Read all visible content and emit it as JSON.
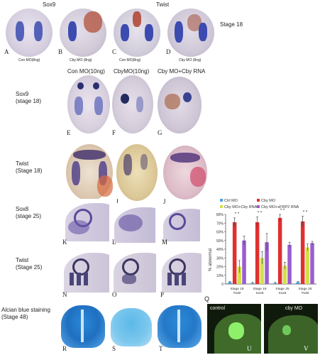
{
  "top_row": {
    "header_sox9": "Sox9",
    "header_twist": "Twist",
    "stage": "Stage 18",
    "captions": [
      "Con MO(8ng)",
      "Cby MO (8ng)",
      "Con MO(8ng)",
      "Cby MO (8ng)"
    ],
    "letters": [
      "A",
      "B",
      "C",
      "D"
    ]
  },
  "col_headers": [
    "Con MO(10ng)",
    "CbyMO(10ng)",
    "Cby MO+Cby RNA"
  ],
  "rows": [
    {
      "label_1": "Sox9",
      "label_2": "(stage 18)",
      "letters": [
        "E",
        "F",
        "G"
      ]
    },
    {
      "label_1": "Twist",
      "label_2": "(Stage 18)",
      "letters": [
        "H",
        "I",
        "J"
      ]
    },
    {
      "label_1": "Sox8",
      "label_2": "(stage 25)",
      "letters": [
        "K",
        "L",
        "M"
      ]
    },
    {
      "label_1": "Twist",
      "label_2": "(Stage 25)",
      "letters": [
        "N",
        "O",
        "P"
      ]
    },
    {
      "label_1": "Alcian blue staining",
      "label_2": "(Stage 48)",
      "letters": [
        "R",
        "S",
        "T"
      ]
    }
  ],
  "fluorescence": {
    "labels": [
      "control",
      "cby MO"
    ],
    "letters": [
      "U",
      "V"
    ]
  },
  "chart_data": {
    "type": "bar",
    "panel_letter": "Q",
    "ylabel": "% abnormal",
    "yticks": [
      "0",
      "10%",
      "20%",
      "30%",
      "40%",
      "50%",
      "60%",
      "70%",
      "80%"
    ],
    "ylim": [
      0,
      80
    ],
    "legend": [
      "Ctrl MO",
      "Cby MO",
      "Cby MO+Cby RNA",
      "Cby MO+sFRP2 RNA"
    ],
    "legend_placement": "top",
    "categories": [
      {
        "line1": "Stage 18",
        "line2": "Twist"
      },
      {
        "line1": "Stage 18",
        "line2": "Sox9"
      },
      {
        "line1": "Stage 25",
        "line2": "Sox8"
      },
      {
        "line1": "Stage 25",
        "line2": "Twist"
      }
    ],
    "series": [
      {
        "name": "Ctrl MO",
        "color": "#4fa3e0",
        "values": [
          2,
          1,
          1,
          2
        ],
        "errors": [
          1,
          1,
          1,
          1
        ]
      },
      {
        "name": "Cby MO",
        "color": "#e03030",
        "values": [
          71,
          71,
          76,
          72
        ],
        "errors": [
          5,
          6,
          4,
          6
        ]
      },
      {
        "name": "Cby MO+Cby RNA",
        "color": "#d4e04a",
        "values": [
          20,
          30,
          21,
          42
        ],
        "errors": [
          7,
          7,
          4,
          4
        ]
      },
      {
        "name": "Cby MO+sFRP2 RNA",
        "color": "#9a5ed0",
        "values": [
          50,
          48,
          45,
          47
        ],
        "errors": [
          5,
          10,
          3,
          2
        ]
      }
    ],
    "significance": [
      "* *",
      "* *",
      "* *",
      "* *"
    ],
    "grid": false,
    "colors": {
      "axis": "#444444",
      "error": "#333333"
    }
  }
}
